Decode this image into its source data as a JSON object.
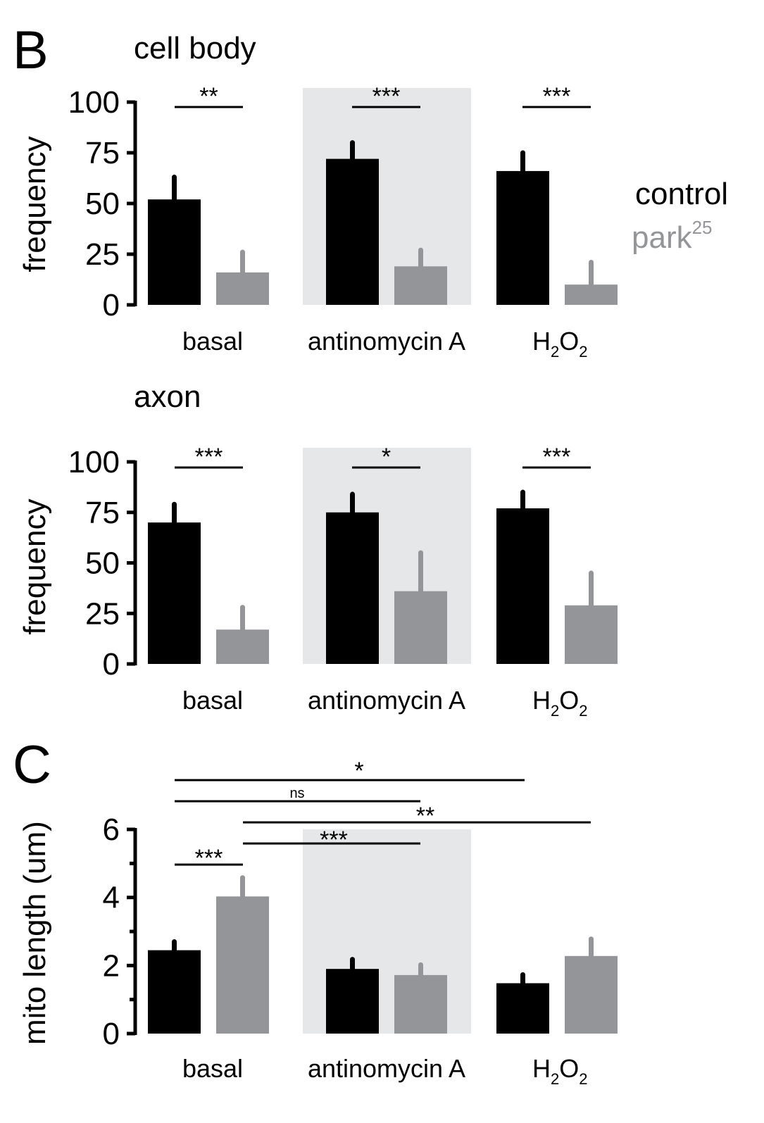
{
  "colors": {
    "control": "#000000",
    "park25": "#939598",
    "shade": "#e6e7e8",
    "legend_park25": "#939598"
  },
  "legend": {
    "control": "control",
    "park_base": "park",
    "park_sup": "25"
  },
  "panels": {
    "B": {
      "letter": "B",
      "charts": [
        {
          "title": "cell body",
          "ylabel": "frequency"
        },
        {
          "title": "axon",
          "ylabel": "frequency"
        }
      ]
    },
    "C": {
      "letter": "C"
    }
  },
  "category_labels": {
    "basal": "basal",
    "antimycin": "antinomycin A",
    "h2o2_H": "H",
    "h2o2_2a": "2",
    "h2o2_O": "O",
    "h2o2_2b": "2"
  },
  "chart_data": [
    {
      "type": "bar",
      "title": "cell body",
      "ylabel": "frequency",
      "xlabel": "",
      "ylim": [
        0,
        100
      ],
      "yticks": [
        "0",
        "25",
        "50",
        "75",
        "100"
      ],
      "categories": [
        "basal",
        "antinomycin A",
        "H2O2"
      ],
      "shaded_category": "antinomycin A",
      "series": [
        {
          "name": "control",
          "values": [
            52,
            72,
            66
          ],
          "errors": [
            11,
            8,
            9
          ]
        },
        {
          "name": "park25",
          "values": [
            16,
            19,
            10
          ],
          "errors": [
            10,
            8,
            11
          ]
        }
      ],
      "significance": [
        {
          "label": "**",
          "category": "basal"
        },
        {
          "label": "***",
          "category": "antinomycin A"
        },
        {
          "label": "***",
          "category": "H2O2"
        }
      ]
    },
    {
      "type": "bar",
      "title": "axon",
      "ylabel": "frequency",
      "xlabel": "",
      "ylim": [
        0,
        100
      ],
      "yticks": [
        "0",
        "25",
        "50",
        "75",
        "100"
      ],
      "categories": [
        "basal",
        "antinomycin A",
        "H2O2"
      ],
      "shaded_category": "antinomycin A",
      "series": [
        {
          "name": "control",
          "values": [
            70,
            75,
            77
          ],
          "errors": [
            9,
            9,
            8
          ]
        },
        {
          "name": "park25",
          "values": [
            17,
            36,
            29
          ],
          "errors": [
            11,
            19,
            16
          ]
        }
      ],
      "significance": [
        {
          "label": "***",
          "category": "basal"
        },
        {
          "label": "*",
          "category": "antinomycin A"
        },
        {
          "label": "***",
          "category": "H2O2"
        }
      ]
    },
    {
      "type": "bar",
      "title": "",
      "ylabel": "mito length (um)",
      "xlabel": "",
      "ylim": [
        0,
        6
      ],
      "yticks": [
        "0",
        "2",
        "4",
        "6"
      ],
      "categories": [
        "basal",
        "antinomycin A",
        "H2O2"
      ],
      "shaded_category": "antinomycin A",
      "series": [
        {
          "name": "control",
          "values": [
            2.45,
            1.9,
            1.48
          ],
          "errors": [
            0.25,
            0.28,
            0.25
          ]
        },
        {
          "name": "park25",
          "values": [
            4.03,
            1.72,
            2.28
          ],
          "errors": [
            0.55,
            0.3,
            0.5
          ]
        }
      ],
      "significance": [
        {
          "label": "***",
          "from": "basal control",
          "to": "basal park25"
        },
        {
          "label": "***",
          "from": "basal park25",
          "to": "antinomycin A park25"
        },
        {
          "label": "**",
          "from": "basal park25",
          "to": "H2O2 park25"
        },
        {
          "label": "ns",
          "from": "basal control",
          "to": "antinomycin A park25"
        },
        {
          "label": "*",
          "from": "basal control",
          "to": "H2O2 control"
        }
      ]
    }
  ]
}
